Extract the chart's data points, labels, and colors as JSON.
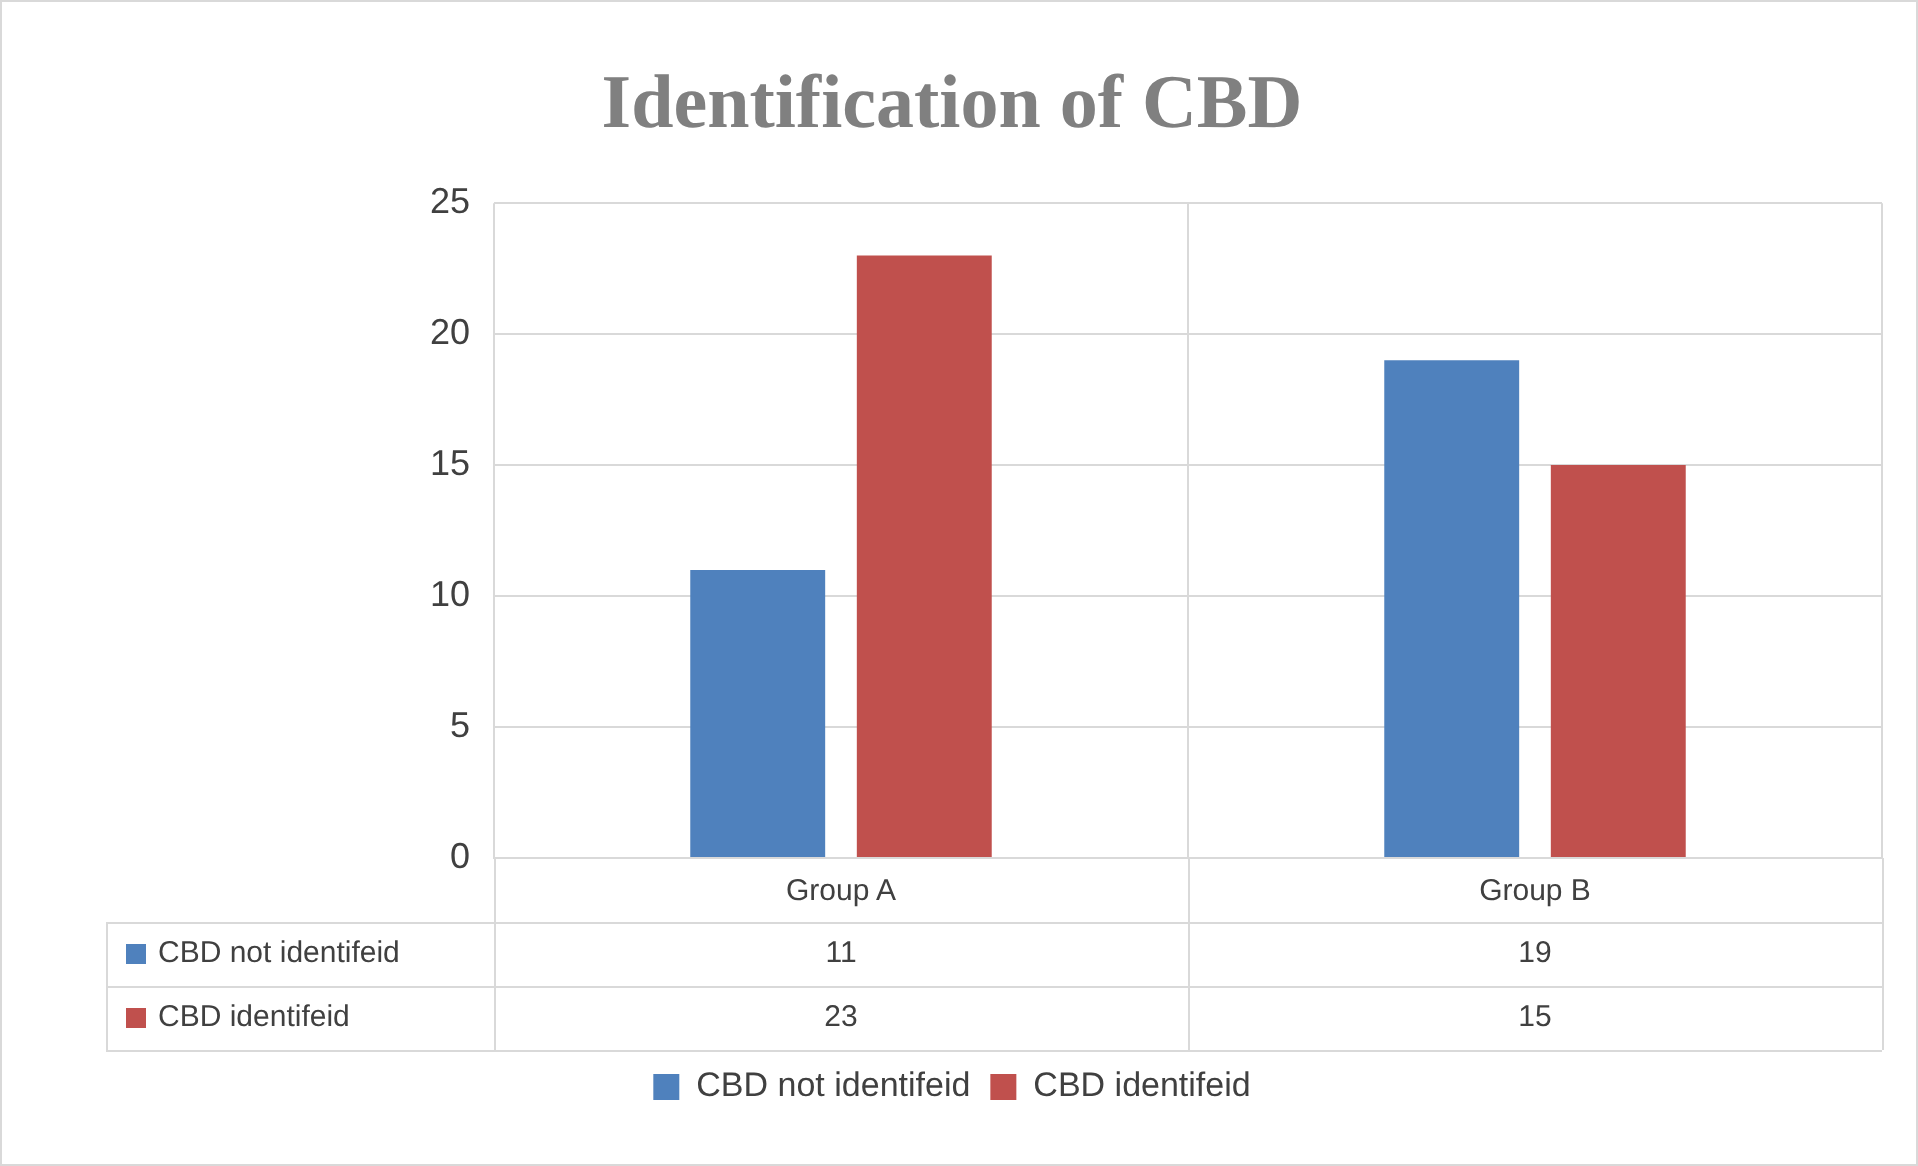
{
  "chart_data": {
    "type": "bar",
    "title": "Identification of CBD",
    "categories": [
      "Group A",
      "Group B"
    ],
    "series": [
      {
        "name": "CBD not identifeid",
        "color": "#4f81bd",
        "values": [
          11,
          19
        ]
      },
      {
        "name": "CBD identifeid",
        "color": "#c0504d",
        "values": [
          23,
          15
        ]
      }
    ],
    "ylim": [
      0,
      25
    ],
    "yticks": [
      0,
      5,
      10,
      15,
      20,
      25
    ],
    "grid": true,
    "legend": "bottom",
    "data_labels": true
  }
}
